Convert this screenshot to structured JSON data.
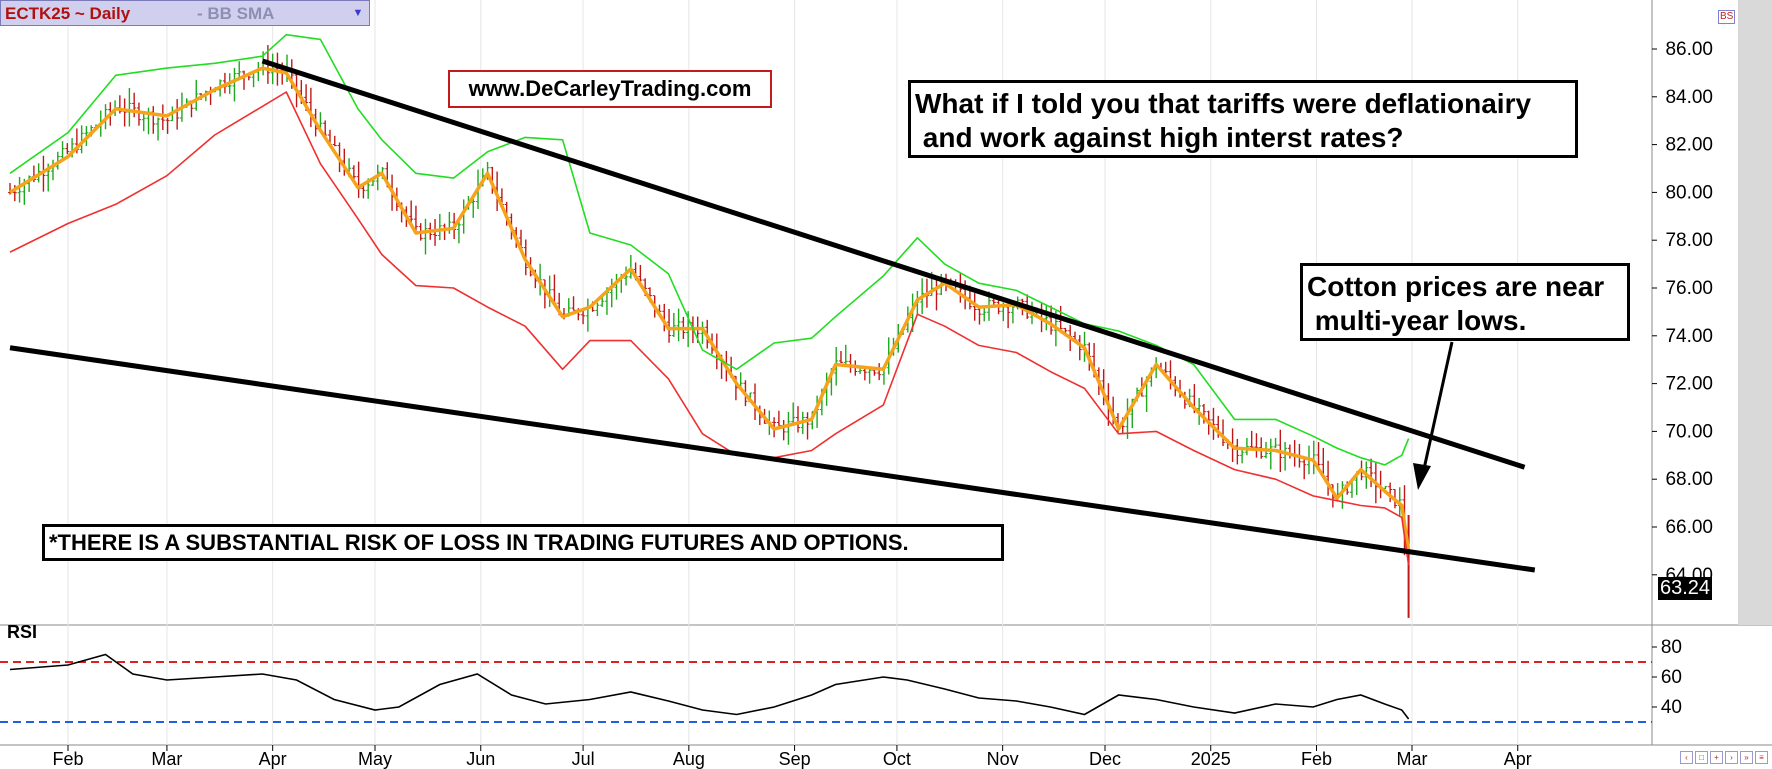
{
  "toolbar": {
    "symbol": "ECTK25 ~ Daily",
    "indicator": "-  BB SMA",
    "dropdown_icon": "chevron-down-icon"
  },
  "annotations": {
    "website": "www.DeCarleyTrading.com",
    "question": "What if I told you that tariffs were deflationairy\n and work against high interst rates?",
    "cotton": "Cotton prices are near\n multi-year lows.",
    "risk": "*THERE IS A SUBSTANTIAL RISK OF LOSS IN TRADING FUTURES AND OPTIONS."
  },
  "rsi_label": "RSI",
  "last_price": "63.24",
  "corner_label": "BS",
  "colors": {
    "up_bar": "#1fa81f",
    "down_bar": "#c01818",
    "upper_band": "#22dd22",
    "lower_band": "#f03030",
    "sma": "#f5a31a",
    "trend": "#000000",
    "rsi_overbought": "#e02020",
    "rsi_oversold": "#2060e0"
  },
  "chart_data": [
    {
      "type": "line",
      "title": "ECTK25 ~ Daily",
      "y_ticks": [
        "86.00",
        "84.00",
        "82.00",
        "80.00",
        "78.00",
        "76.00",
        "74.00",
        "72.00",
        "70.00",
        "68.00",
        "66.00",
        "64.00"
      ],
      "y_tick_values": [
        86,
        84,
        82,
        80,
        78,
        76,
        74,
        72,
        70,
        68,
        66,
        64
      ],
      "x_ticks": [
        "Feb",
        "Mar",
        "Apr",
        "May",
        "Jun",
        "Jul",
        "Aug",
        "Sep",
        "Oct",
        "Nov",
        "Dec",
        "2025",
        "Feb",
        "Mar",
        "Apr"
      ],
      "x_tick_dates": [
        "2024-02-01",
        "2024-03-01",
        "2024-04-01",
        "2024-05-01",
        "2024-06-01",
        "2024-07-01",
        "2024-08-01",
        "2024-09-01",
        "2024-10-01",
        "2024-11-01",
        "2024-12-01",
        "2025-01-01",
        "2025-02-01",
        "2025-03-01",
        "2025-04-01"
      ],
      "last_value": 63.24,
      "series": [
        {
          "name": "Close",
          "x": [
            "2024-01-15",
            "2024-02-01",
            "2024-02-15",
            "2024-03-01",
            "2024-03-15",
            "2024-03-29",
            "2024-04-05",
            "2024-04-15",
            "2024-04-26",
            "2024-05-03",
            "2024-05-13",
            "2024-05-24",
            "2024-06-03",
            "2024-06-14",
            "2024-06-25",
            "2024-07-03",
            "2024-07-15",
            "2024-07-26",
            "2024-08-05",
            "2024-08-15",
            "2024-08-26",
            "2024-09-06",
            "2024-09-13",
            "2024-09-27",
            "2024-10-07",
            "2024-10-15",
            "2024-10-25",
            "2024-11-05",
            "2024-11-15",
            "2024-11-25",
            "2024-12-05",
            "2024-12-16",
            "2024-12-27",
            "2025-01-08",
            "2025-01-20",
            "2025-01-31",
            "2025-02-07",
            "2025-02-14",
            "2025-02-21",
            "2025-02-26",
            "2025-02-28"
          ],
          "values": [
            80.0,
            81.7,
            83.6,
            83.0,
            84.5,
            85.3,
            85.0,
            82.6,
            80.2,
            80.8,
            78.3,
            78.5,
            80.8,
            77.2,
            74.8,
            75.2,
            76.8,
            74.3,
            74.3,
            72.0,
            70.1,
            70.5,
            72.8,
            72.6,
            75.5,
            76.2,
            75.2,
            75.3,
            74.5,
            73.5,
            70.1,
            72.8,
            71.0,
            69.3,
            69.2,
            68.8,
            67.2,
            68.4,
            67.5,
            66.9,
            63.24
          ]
        },
        {
          "name": "SMA",
          "x": [
            "2024-01-15",
            "2024-02-01",
            "2024-02-15",
            "2024-03-01",
            "2024-03-15",
            "2024-03-29",
            "2024-04-05",
            "2024-04-15",
            "2024-04-26",
            "2024-05-03",
            "2024-05-13",
            "2024-05-24",
            "2024-06-03",
            "2024-06-14",
            "2024-06-25",
            "2024-07-03",
            "2024-07-15",
            "2024-07-26",
            "2024-08-05",
            "2024-08-15",
            "2024-08-26",
            "2024-09-06",
            "2024-09-13",
            "2024-09-27",
            "2024-10-07",
            "2024-10-15",
            "2024-10-25",
            "2024-11-05",
            "2024-11-15",
            "2024-11-25",
            "2024-12-05",
            "2024-12-16",
            "2024-12-27",
            "2025-01-08",
            "2025-01-20",
            "2025-01-31",
            "2025-02-07",
            "2025-02-14",
            "2025-02-21",
            "2025-02-26",
            "2025-02-28"
          ],
          "values": [
            80.0,
            81.5,
            83.5,
            83.2,
            84.3,
            85.2,
            85.0,
            82.6,
            80.2,
            80.8,
            78.3,
            78.5,
            80.8,
            77.2,
            74.8,
            75.2,
            76.8,
            74.3,
            74.3,
            72.0,
            70.1,
            70.5,
            72.8,
            72.6,
            75.5,
            76.2,
            75.2,
            75.3,
            74.5,
            73.5,
            70.1,
            72.8,
            71.0,
            69.3,
            69.2,
            68.8,
            67.2,
            68.4,
            67.5,
            66.9,
            65.0
          ]
        },
        {
          "name": "Upper Band",
          "x": [
            "2024-01-15",
            "2024-02-01",
            "2024-02-15",
            "2024-03-01",
            "2024-03-15",
            "2024-03-29",
            "2024-04-05",
            "2024-04-15",
            "2024-04-26",
            "2024-05-03",
            "2024-05-13",
            "2024-05-24",
            "2024-06-03",
            "2024-06-14",
            "2024-06-25",
            "2024-07-03",
            "2024-07-15",
            "2024-07-26",
            "2024-08-05",
            "2024-08-15",
            "2024-08-26",
            "2024-09-06",
            "2024-09-13",
            "2024-09-27",
            "2024-10-07",
            "2024-10-15",
            "2024-10-25",
            "2024-11-05",
            "2024-11-15",
            "2024-11-25",
            "2024-12-05",
            "2024-12-16",
            "2024-12-27",
            "2025-01-08",
            "2025-01-20",
            "2025-01-31",
            "2025-02-07",
            "2025-02-14",
            "2025-02-21",
            "2025-02-26",
            "2025-02-28"
          ],
          "values": [
            80.8,
            82.5,
            84.9,
            85.2,
            85.4,
            85.7,
            86.6,
            86.4,
            83.5,
            82.2,
            80.8,
            80.6,
            81.7,
            82.3,
            82.2,
            78.3,
            77.8,
            76.6,
            73.4,
            72.6,
            73.7,
            73.9,
            74.8,
            76.5,
            78.1,
            77.0,
            76.2,
            75.9,
            75.2,
            74.5,
            74.2,
            73.6,
            72.8,
            70.5,
            70.5,
            69.8,
            69.3,
            68.9,
            68.6,
            69.0,
            69.7
          ]
        },
        {
          "name": "Lower Band",
          "x": [
            "2024-01-15",
            "2024-02-01",
            "2024-02-15",
            "2024-03-01",
            "2024-03-15",
            "2024-03-29",
            "2024-04-05",
            "2024-04-15",
            "2024-04-26",
            "2024-05-03",
            "2024-05-13",
            "2024-05-24",
            "2024-06-03",
            "2024-06-14",
            "2024-06-25",
            "2024-07-03",
            "2024-07-15",
            "2024-07-26",
            "2024-08-05",
            "2024-08-15",
            "2024-08-26",
            "2024-09-06",
            "2024-09-13",
            "2024-09-27",
            "2024-10-07",
            "2024-10-15",
            "2024-10-25",
            "2024-11-05",
            "2024-11-15",
            "2024-11-25",
            "2024-12-05",
            "2024-12-16",
            "2024-12-27",
            "2025-01-08",
            "2025-01-20",
            "2025-01-31",
            "2025-02-07",
            "2025-02-14",
            "2025-02-21",
            "2025-02-26",
            "2025-02-28"
          ],
          "values": [
            77.5,
            78.7,
            79.5,
            80.7,
            82.4,
            83.6,
            84.2,
            81.2,
            78.9,
            77.4,
            76.1,
            76.0,
            75.2,
            74.4,
            72.6,
            73.8,
            73.8,
            72.2,
            69.9,
            69.0,
            68.9,
            69.2,
            69.9,
            71.1,
            74.9,
            74.4,
            73.6,
            73.3,
            72.5,
            71.8,
            69.9,
            70.0,
            69.2,
            68.4,
            68.0,
            67.3,
            67.1,
            66.9,
            66.8,
            66.4,
            64.4
          ]
        }
      ],
      "trend_lines": [
        {
          "x": [
            "2024-03-29",
            "2025-04-03"
          ],
          "y": [
            85.5,
            68.5
          ]
        },
        {
          "x": [
            "2024-01-15",
            "2025-04-06"
          ],
          "y": [
            73.5,
            64.2
          ]
        }
      ]
    },
    {
      "type": "line",
      "title": "RSI",
      "y_ticks": [
        "80",
        "60",
        "40"
      ],
      "y_tick_values": [
        80,
        60,
        40
      ],
      "y_range": [
        30,
        88
      ],
      "levels": [
        70,
        30
      ],
      "series": [
        {
          "name": "RSI",
          "x": [
            "2024-01-15",
            "2024-02-01",
            "2024-02-12",
            "2024-02-20",
            "2024-03-01",
            "2024-03-15",
            "2024-03-29",
            "2024-04-08",
            "2024-04-19",
            "2024-05-01",
            "2024-05-08",
            "2024-05-20",
            "2024-05-31",
            "2024-06-10",
            "2024-06-20",
            "2024-07-03",
            "2024-07-15",
            "2024-07-26",
            "2024-08-05",
            "2024-08-15",
            "2024-08-26",
            "2024-09-06",
            "2024-09-13",
            "2024-09-27",
            "2024-10-04",
            "2024-10-15",
            "2024-10-25",
            "2024-11-05",
            "2024-11-15",
            "2024-11-25",
            "2024-12-05",
            "2024-12-16",
            "2024-12-27",
            "2025-01-08",
            "2025-01-20",
            "2025-01-31",
            "2025-02-07",
            "2025-02-14",
            "2025-02-21",
            "2025-02-26",
            "2025-02-28"
          ],
          "values": [
            65,
            68,
            75,
            62,
            58,
            60,
            62,
            58,
            45,
            38,
            40,
            55,
            62,
            48,
            42,
            45,
            50,
            44,
            38,
            35,
            40,
            48,
            55,
            60,
            58,
            52,
            46,
            44,
            40,
            35,
            48,
            45,
            40,
            36,
            42,
            40,
            45,
            48,
            42,
            38,
            32
          ]
        }
      ]
    }
  ]
}
